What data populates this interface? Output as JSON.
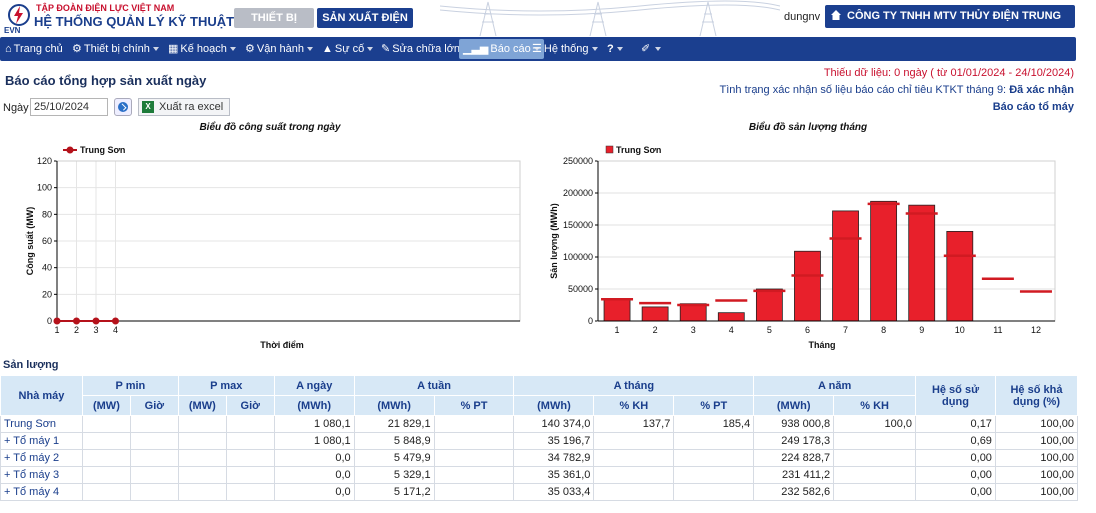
{
  "header": {
    "org_small": "TẬP ĐOÀN ĐIỆN LỰC VIỆT NAM",
    "org_big": "HỆ THỐNG QUẢN LÝ KỸ THUẬT",
    "logo_text": "EVN",
    "tab_equipment": "THIẾT BỊ",
    "tab_production": "SẢN XUẤT ĐIỆN",
    "user": "dungnv",
    "company": "CÔNG TY TNHH MTV THỦY ĐIỆN TRUNG SƠN"
  },
  "nav": {
    "items": [
      {
        "label": "Trang chủ",
        "icon": "home-icon"
      },
      {
        "label": "Thiết bị chính",
        "icon": "gears-icon"
      },
      {
        "label": "Kế hoạch",
        "icon": "calendar-icon"
      },
      {
        "label": "Vận hành",
        "icon": "cogs-icon"
      },
      {
        "label": "Sự cố",
        "icon": "warning-icon"
      },
      {
        "label": "Sửa chữa lớn",
        "icon": "wrench-icon"
      },
      {
        "label": "Báo cáo",
        "icon": "chart-icon"
      },
      {
        "label": "Hệ thống",
        "icon": "list-icon"
      },
      {
        "label": "?",
        "icon": "help-icon"
      },
      {
        "label": "",
        "icon": "brush-icon"
      }
    ]
  },
  "page": {
    "title": "Báo cáo tổng hợp sản xuất ngày",
    "missing_data": "Thiếu dữ liệu: 0 ngày ( từ 01/01/2024 - 24/10/2024)",
    "confirm_status_label": "Tình trạng xác nhận số liệu báo cáo chỉ tiêu KTKT tháng 9:",
    "confirm_status_value": "Đã xác nhận",
    "unit_report_link": "Báo cáo tổ máy",
    "date_label": "Ngày",
    "date_value": "25/10/2024",
    "excel_button": "Xuất ra excel",
    "excel_icon_text": "X"
  },
  "chart_data": [
    {
      "type": "line",
      "title": "Biểu đồ công suất trong ngày",
      "xlabel": "Thời điểm",
      "ylabel": "Công suất (MW)",
      "ylim": [
        0,
        120
      ],
      "yticks": [
        0,
        20,
        40,
        60,
        80,
        100,
        120
      ],
      "x": [
        1,
        2,
        3,
        4
      ],
      "series": [
        {
          "name": "Trung Sơn",
          "values": [
            0,
            0,
            0,
            0
          ],
          "color": "#b5121b"
        }
      ],
      "legend": "top-left",
      "grid": true
    },
    {
      "type": "bar",
      "title": "Biểu đồ sản lượng tháng",
      "xlabel": "Tháng",
      "ylabel": "Sản lượng (MWh)",
      "ylim": [
        0,
        250000
      ],
      "yticks": [
        0,
        50000,
        100000,
        150000,
        200000,
        250000
      ],
      "categories": [
        "1",
        "2",
        "3",
        "4",
        "5",
        "6",
        "7",
        "8",
        "9",
        "10",
        "11",
        "12"
      ],
      "series": [
        {
          "name": "Trung Sơn",
          "values": [
            35000,
            22000,
            27000,
            13000,
            50000,
            109000,
            172000,
            187000,
            181000,
            140000,
            null,
            null
          ],
          "color": "#e8202b"
        }
      ],
      "plan": [
        34000,
        28000,
        25000,
        32000,
        47000,
        71000,
        129000,
        183000,
        168000,
        102000,
        66000,
        46000
      ],
      "legend": "top-left",
      "grid": true
    }
  ],
  "table": {
    "section_title": "Sản lượng",
    "headers_top": [
      "Nhà máy",
      "P min",
      "P max",
      "A ngày",
      "A tuần",
      "A tháng",
      "A năm",
      "Hệ số sử dụng",
      "Hệ số khả dụng (%)"
    ],
    "headers_sub": [
      "(MW)",
      "Giờ",
      "(MW)",
      "Giờ",
      "(MWh)",
      "(MWh)",
      "% PT",
      "(MWh)",
      "% KH",
      "% PT",
      "(MWh)",
      "% KH"
    ],
    "rows": [
      [
        "Trung Sơn",
        "",
        "",
        "",
        "",
        "1 080,1",
        "21 829,1",
        "",
        "140 374,0",
        "137,7",
        "185,4",
        "938 000,8",
        "100,0",
        "0,17",
        "100,00"
      ],
      [
        "+ Tổ máy 1",
        "",
        "",
        "",
        "",
        "1 080,1",
        "5 848,9",
        "",
        "35 196,7",
        "",
        "",
        "249 178,3",
        "",
        "0,69",
        "100,00"
      ],
      [
        "+ Tổ máy 2",
        "",
        "",
        "",
        "",
        "0,0",
        "5 479,9",
        "",
        "34 782,9",
        "",
        "",
        "224 828,7",
        "",
        "0,00",
        "100,00"
      ],
      [
        "+ Tổ máy 3",
        "",
        "",
        "",
        "",
        "0,0",
        "5 329,1",
        "",
        "35 361,0",
        "",
        "",
        "231 411,2",
        "",
        "0,00",
        "100,00"
      ],
      [
        "+ Tổ máy 4",
        "",
        "",
        "",
        "",
        "0,0",
        "5 171,2",
        "",
        "35 033,4",
        "",
        "",
        "232 582,6",
        "",
        "0,00",
        "100,00"
      ]
    ]
  }
}
